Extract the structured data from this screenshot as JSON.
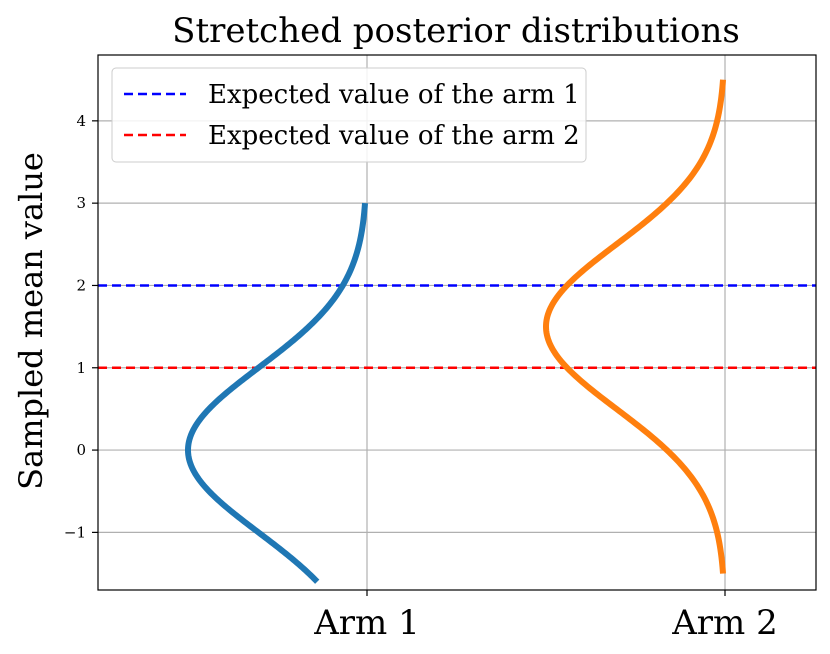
{
  "chart_data": {
    "type": "line",
    "title": "Stretched posterior distributions",
    "xlabel": "",
    "ylabel": "Sampled mean value",
    "categories": [
      "Arm 1",
      "Arm 2"
    ],
    "ylim": [
      -1.7,
      4.8
    ],
    "yticks": [
      -1,
      0,
      1,
      2,
      3,
      4
    ],
    "ytick_labels": [
      "−1",
      "0",
      "1",
      "2",
      "3",
      "4"
    ],
    "grid": true,
    "legend_position": "top-left",
    "hlines": [
      {
        "name": "Expected value of the arm 1",
        "y": 2,
        "color": "#0000ff",
        "style": "dashed"
      },
      {
        "name": "Expected value of the arm 2",
        "y": 1,
        "color": "#ff0000",
        "style": "dashed"
      }
    ],
    "series": [
      {
        "category": "Arm 1",
        "color": "#1f77b4",
        "mean": 0,
        "sd": 1,
        "y_range": [
          -1.6,
          3.0
        ],
        "max_width": 0.5
      },
      {
        "category": "Arm 2",
        "color": "#ff7f0e",
        "mean": 1.5,
        "sd": 1,
        "y_range": [
          -1.5,
          4.5
        ],
        "max_width": 0.5
      }
    ]
  }
}
